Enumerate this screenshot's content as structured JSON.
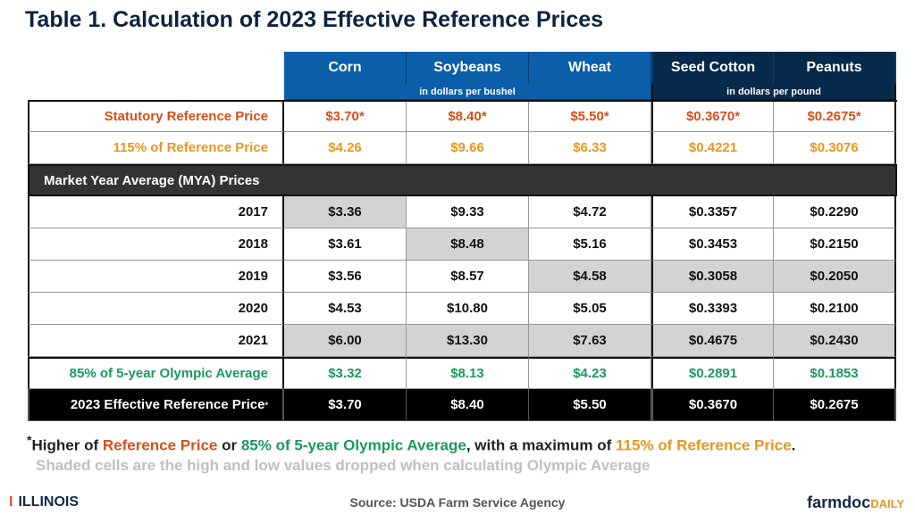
{
  "title": "Table 1. Calculation of 2023 Effective Reference Prices",
  "colors": {
    "blue": "#0b5ea8",
    "navy": "#062a4a",
    "statutory": "#d4501a",
    "ref115": "#e8961e",
    "olympic": "#1a9a5a",
    "shade": "#d3d3d3"
  },
  "chart_data": {
    "type": "table",
    "columns": [
      "Corn",
      "Soybeans",
      "Wheat",
      "Seed Cotton",
      "Peanuts"
    ],
    "units": [
      "in dollars per bushel",
      "in dollars per pound"
    ],
    "rows": {
      "statutory": {
        "label": "Statutory Reference Price",
        "values": [
          "$3.70*",
          "$8.40*",
          "$5.50*",
          "$0.3670*",
          "$0.2675*"
        ]
      },
      "ref115": {
        "label": "115% of Reference Price",
        "values": [
          "$4.26",
          "$9.66",
          "$6.33",
          "$0.4221",
          "$0.3076"
        ]
      },
      "mya_label": "Market Year Average (MYA) Prices",
      "years": [
        {
          "label": "2017",
          "values": [
            "$3.36",
            "$9.33",
            "$4.72",
            "$0.3357",
            "$0.2290"
          ],
          "shaded": [
            true,
            false,
            false,
            false,
            false
          ]
        },
        {
          "label": "2018",
          "values": [
            "$3.61",
            "$8.48",
            "$5.16",
            "$0.3453",
            "$0.2150"
          ],
          "shaded": [
            false,
            true,
            false,
            false,
            false
          ]
        },
        {
          "label": "2019",
          "values": [
            "$3.56",
            "$8.57",
            "$4.58",
            "$0.3058",
            "$0.2050"
          ],
          "shaded": [
            false,
            false,
            true,
            true,
            true
          ]
        },
        {
          "label": "2020",
          "values": [
            "$4.53",
            "$10.80",
            "$5.05",
            "$0.3393",
            "$0.2100"
          ],
          "shaded": [
            false,
            false,
            false,
            false,
            false
          ]
        },
        {
          "label": "2021",
          "values": [
            "$6.00",
            "$13.30",
            "$7.63",
            "$0.4675",
            "$0.2430"
          ],
          "shaded": [
            true,
            true,
            true,
            true,
            true
          ]
        }
      ],
      "olympic": {
        "label": "85% of 5-year Olympic Average",
        "values": [
          "$3.32",
          "$8.13",
          "$4.23",
          "$0.2891",
          "$0.1853"
        ]
      },
      "effective": {
        "label": "2023 Effective Reference Price",
        "sup": "*",
        "values": [
          "$3.70",
          "$8.40",
          "$5.50",
          "$0.3670",
          "$0.2675"
        ]
      }
    }
  },
  "footnote": {
    "star": "*",
    "p1": "Higher of ",
    "p2": "Reference Price",
    "p3": " or ",
    "p4": "85% of 5-year Olympic Average",
    "p5": ", with a maximum of ",
    "p6": "115% of Reference Price",
    "p7": ".",
    "line2": "Shaded cells are the high and low values dropped when calculating Olympic Average"
  },
  "source": "Source: USDA Farm Service Agency",
  "logo_left": "ILLINOIS",
  "logo_right": {
    "a": "farmdoc",
    "b": "DAILY"
  }
}
